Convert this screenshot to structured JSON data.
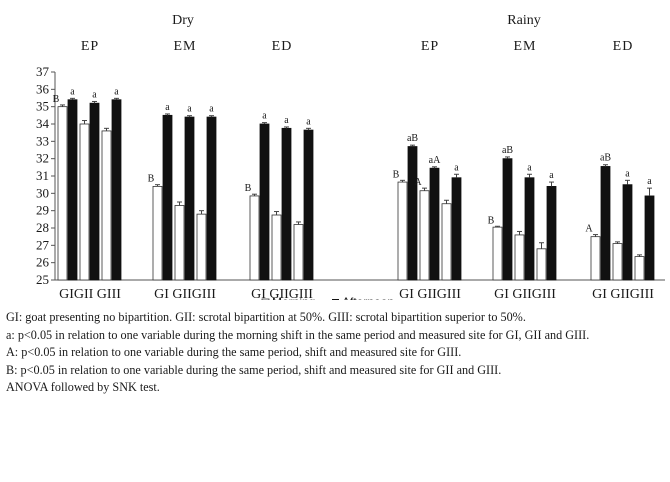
{
  "chart_data": {
    "type": "bar",
    "ylim": [
      25,
      37
    ],
    "yticks": [
      25,
      26,
      27,
      28,
      29,
      30,
      31,
      32,
      33,
      34,
      35,
      36,
      37
    ],
    "seasons": [
      {
        "name": "Dry",
        "groups": [
          {
            "name": "EP",
            "categories": [
              "GI",
              "GII",
              "GIII"
            ],
            "cat_label": "GIGII GIII",
            "morning": [
              35.0,
              34.0,
              33.6
            ],
            "afternoon": [
              35.4,
              35.2,
              35.4
            ],
            "morning_err": [
              0.1,
              0.2,
              0.15
            ],
            "afternoon_err": [
              0.08,
              0.1,
              0.08
            ],
            "morning_labels": [
              "B",
              "",
              ""
            ],
            "afternoon_labels": [
              "a",
              "a",
              "a"
            ]
          },
          {
            "name": "EM",
            "categories": [
              "GI",
              "GII",
              "GIII"
            ],
            "cat_label": "GI GIIGIII",
            "morning": [
              30.4,
              29.3,
              28.8
            ],
            "afternoon": [
              34.5,
              34.4,
              34.4
            ],
            "morning_err": [
              0.1,
              0.2,
              0.2
            ],
            "afternoon_err": [
              0.08,
              0.08,
              0.08
            ],
            "morning_labels": [
              "B",
              "",
              ""
            ],
            "afternoon_labels": [
              "a",
              "a",
              "a"
            ]
          },
          {
            "name": "ED",
            "categories": [
              "GI",
              "GII",
              "GIII"
            ],
            "cat_label": "GI GIIGIII",
            "morning": [
              29.85,
              28.75,
              28.2
            ],
            "afternoon": [
              34.0,
              33.75,
              33.65
            ],
            "morning_err": [
              0.1,
              0.2,
              0.15
            ],
            "afternoon_err": [
              0.08,
              0.08,
              0.1
            ],
            "morning_labels": [
              "B",
              "",
              ""
            ],
            "afternoon_labels": [
              "a",
              "a",
              "a"
            ]
          }
        ]
      },
      {
        "name": "Rainy",
        "groups": [
          {
            "name": "EP",
            "categories": [
              "GI",
              "GII",
              "GIII"
            ],
            "cat_label": "GI GIIGIII",
            "morning": [
              30.65,
              30.15,
              29.4
            ],
            "afternoon": [
              32.7,
              31.45,
              30.9
            ],
            "morning_err": [
              0.1,
              0.15,
              0.2
            ],
            "afternoon_err": [
              0.08,
              0.08,
              0.2
            ],
            "morning_labels": [
              "B",
              "A",
              ""
            ],
            "afternoon_labels": [
              "aB",
              "aA",
              "a"
            ]
          },
          {
            "name": "EM",
            "categories": [
              "GI",
              "GII",
              "GIII"
            ],
            "cat_label": "GI GIIGIII",
            "morning": [
              28.05,
              27.6,
              26.8
            ],
            "afternoon": [
              32.0,
              30.9,
              30.4
            ],
            "morning_err": [
              0.05,
              0.2,
              0.35
            ],
            "afternoon_err": [
              0.1,
              0.2,
              0.25
            ],
            "morning_labels": [
              "B",
              "",
              ""
            ],
            "afternoon_labels": [
              "aB",
              "a",
              "a"
            ]
          },
          {
            "name": "ED",
            "categories": [
              "GI",
              "GII",
              "GIII"
            ],
            "cat_label": "GI GIIGIII",
            "morning": [
              27.5,
              27.1,
              26.35
            ],
            "afternoon": [
              31.55,
              30.5,
              29.85
            ],
            "morning_err": [
              0.12,
              0.1,
              0.1
            ],
            "afternoon_err": [
              0.1,
              0.25,
              0.45
            ],
            "morning_labels": [
              "A",
              "",
              ""
            ],
            "afternoon_labels": [
              "aB",
              "a",
              "a"
            ]
          }
        ]
      }
    ],
    "legend": {
      "placement": "bottom-center",
      "morning": "Morning",
      "afternoon": "Afternoon"
    },
    "colors": {
      "morning": "#ffffff",
      "afternoon": "#111111",
      "axis": "#555555",
      "error": "#444444"
    }
  },
  "notes": [
    "GI: goat presenting no bipartition. GII: scrotal bipartition at 50%. GIII: scrotal bipartition superior to 50%.",
    "a: p<0.05 in relation to one variable during the morning shift in the same period and measured site for GI, GII and GIII.",
    "A: p<0.05 in relation to one variable during the same period, shift and measured site for GIII.",
    "B: p<0.05 in relation to one variable during the same period, shift and measured site for GII and GIII.",
    "ANOVA followed by SNK test."
  ]
}
